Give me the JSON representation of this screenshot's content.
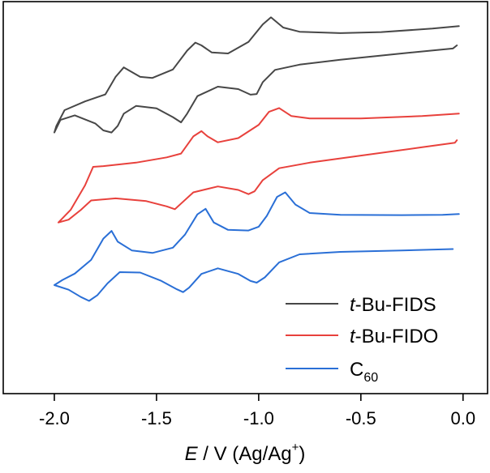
{
  "chart_data": {
    "type": "line",
    "title": "",
    "xlabel": {
      "italic": "E",
      "rest": " / V (Ag/Ag",
      "sup": "+",
      "close": ")"
    },
    "ylabel": "",
    "xlim": [
      -2.25,
      0.12
    ],
    "ylim": [
      -12,
      100
    ],
    "xticks": [
      -2.0,
      -1.5,
      -1.0,
      -0.5,
      0.0
    ],
    "xtick_labels": [
      "-2.0",
      "-1.5",
      "-1.0",
      "-0.5",
      "0.0"
    ],
    "legend": {
      "placement": "bottom-right",
      "entries": [
        {
          "series": "t-Bu-FIDS",
          "italic": "t",
          "rest": "-Bu-FIDS"
        },
        {
          "series": "t-Bu-FIDO",
          "italic": "t",
          "rest": "-Bu-FIDO"
        },
        {
          "series": "C60",
          "base": "C",
          "sub": "60"
        }
      ]
    },
    "series": [
      {
        "name": "t-Bu-FIDS",
        "color": "#474747",
        "points": [
          [
            -0.02,
            93
          ],
          [
            -0.15,
            92.3
          ],
          [
            -0.4,
            91.3
          ],
          [
            -0.6,
            91
          ],
          [
            -0.8,
            91.4
          ],
          [
            -0.88,
            92.6
          ],
          [
            -0.94,
            95.5
          ],
          [
            -0.98,
            93.5
          ],
          [
            -1.05,
            88.5
          ],
          [
            -1.15,
            85.2
          ],
          [
            -1.23,
            85.5
          ],
          [
            -1.28,
            87.5
          ],
          [
            -1.31,
            88.3
          ],
          [
            -1.35,
            86
          ],
          [
            -1.42,
            80.6
          ],
          [
            -1.52,
            78.2
          ],
          [
            -1.58,
            78.5
          ],
          [
            -1.63,
            80.2
          ],
          [
            -1.66,
            81.2
          ],
          [
            -1.7,
            78.5
          ],
          [
            -1.75,
            73.5
          ],
          [
            -1.85,
            71.5
          ],
          [
            -1.95,
            69
          ],
          [
            -1.99,
            64.5
          ],
          [
            -2.0,
            62.6
          ],
          [
            -1.97,
            66.2
          ],
          [
            -1.9,
            67.5
          ],
          [
            -1.8,
            65.2
          ],
          [
            -1.76,
            63.2
          ],
          [
            -1.72,
            62.6
          ],
          [
            -1.69,
            64.5
          ],
          [
            -1.66,
            68
          ],
          [
            -1.6,
            70.2
          ],
          [
            -1.5,
            69.5
          ],
          [
            -1.42,
            67
          ],
          [
            -1.38,
            65.5
          ],
          [
            -1.35,
            68
          ],
          [
            -1.3,
            73
          ],
          [
            -1.2,
            75.7
          ],
          [
            -1.1,
            75
          ],
          [
            -1.04,
            73.4
          ],
          [
            -1.01,
            73.6
          ],
          [
            -0.98,
            77
          ],
          [
            -0.92,
            80.5
          ],
          [
            -0.8,
            82
          ],
          [
            -0.6,
            83.4
          ],
          [
            -0.3,
            85.2
          ],
          [
            -0.05,
            86.6
          ],
          [
            -0.03,
            87.5
          ]
        ]
      },
      {
        "name": "t-Bu-FIDO",
        "color": "#e8413c",
        "points": [
          [
            -0.02,
            68
          ],
          [
            -0.2,
            67.3
          ],
          [
            -0.5,
            66.6
          ],
          [
            -0.75,
            66.6
          ],
          [
            -0.84,
            67.3
          ],
          [
            -0.9,
            69.6
          ],
          [
            -0.95,
            68.5
          ],
          [
            -1.0,
            64.8
          ],
          [
            -1.1,
            61
          ],
          [
            -1.2,
            59.8
          ],
          [
            -1.25,
            61.5
          ],
          [
            -1.28,
            63
          ],
          [
            -1.32,
            61.5
          ],
          [
            -1.38,
            56.6
          ],
          [
            -1.45,
            55.5
          ],
          [
            -1.6,
            54
          ],
          [
            -1.76,
            53
          ],
          [
            -1.81,
            52.8
          ],
          [
            -1.85,
            47.5
          ],
          [
            -1.92,
            40.5
          ],
          [
            -1.98,
            36.9
          ],
          [
            -1.93,
            37.7
          ],
          [
            -1.87,
            40.5
          ],
          [
            -1.82,
            43.2
          ],
          [
            -1.7,
            43.8
          ],
          [
            -1.55,
            43
          ],
          [
            -1.45,
            41.5
          ],
          [
            -1.41,
            40.7
          ],
          [
            -1.38,
            42.3
          ],
          [
            -1.32,
            45.5
          ],
          [
            -1.2,
            47.2
          ],
          [
            -1.1,
            46.2
          ],
          [
            -1.05,
            45
          ],
          [
            -1.02,
            45.8
          ],
          [
            -0.98,
            49
          ],
          [
            -0.9,
            52.4
          ],
          [
            -0.75,
            54
          ],
          [
            -0.5,
            56
          ],
          [
            -0.2,
            58.4
          ],
          [
            -0.04,
            59.7
          ],
          [
            -0.03,
            60.4
          ]
        ]
      },
      {
        "name": "C60",
        "color": "#2a6fd6",
        "points": [
          [
            -0.02,
            39.3
          ],
          [
            -0.1,
            39.1
          ],
          [
            -0.3,
            39
          ],
          [
            -0.6,
            39.1
          ],
          [
            -0.75,
            39.6
          ],
          [
            -0.82,
            42
          ],
          [
            -0.87,
            45.5
          ],
          [
            -0.91,
            44.2
          ],
          [
            -0.96,
            38.8
          ],
          [
            -1.0,
            35.7
          ],
          [
            -1.05,
            34.6
          ],
          [
            -1.15,
            34.8
          ],
          [
            -1.22,
            36.9
          ],
          [
            -1.26,
            40.8
          ],
          [
            -1.3,
            39.2
          ],
          [
            -1.36,
            33.5
          ],
          [
            -1.42,
            29.7
          ],
          [
            -1.52,
            28.2
          ],
          [
            -1.62,
            28.9
          ],
          [
            -1.69,
            31.4
          ],
          [
            -1.72,
            34.5
          ],
          [
            -1.76,
            32.3
          ],
          [
            -1.82,
            26.2
          ],
          [
            -1.9,
            22.3
          ],
          [
            -1.96,
            20.5
          ],
          [
            -2.0,
            19
          ],
          [
            -1.93,
            17.7
          ],
          [
            -1.87,
            15.6
          ],
          [
            -1.83,
            14.5
          ],
          [
            -1.79,
            16.1
          ],
          [
            -1.74,
            19.5
          ],
          [
            -1.68,
            22.7
          ],
          [
            -1.58,
            22.6
          ],
          [
            -1.48,
            20.3
          ],
          [
            -1.4,
            17.8
          ],
          [
            -1.37,
            17
          ],
          [
            -1.34,
            18.3
          ],
          [
            -1.28,
            22.2
          ],
          [
            -1.2,
            23.8
          ],
          [
            -1.1,
            22.2
          ],
          [
            -1.04,
            20.2
          ],
          [
            -1.01,
            19.7
          ],
          [
            -0.97,
            21.2
          ],
          [
            -0.9,
            25.5
          ],
          [
            -0.8,
            27.8
          ],
          [
            -0.6,
            28.5
          ],
          [
            -0.3,
            28.9
          ],
          [
            -0.05,
            29.3
          ]
        ]
      }
    ]
  }
}
